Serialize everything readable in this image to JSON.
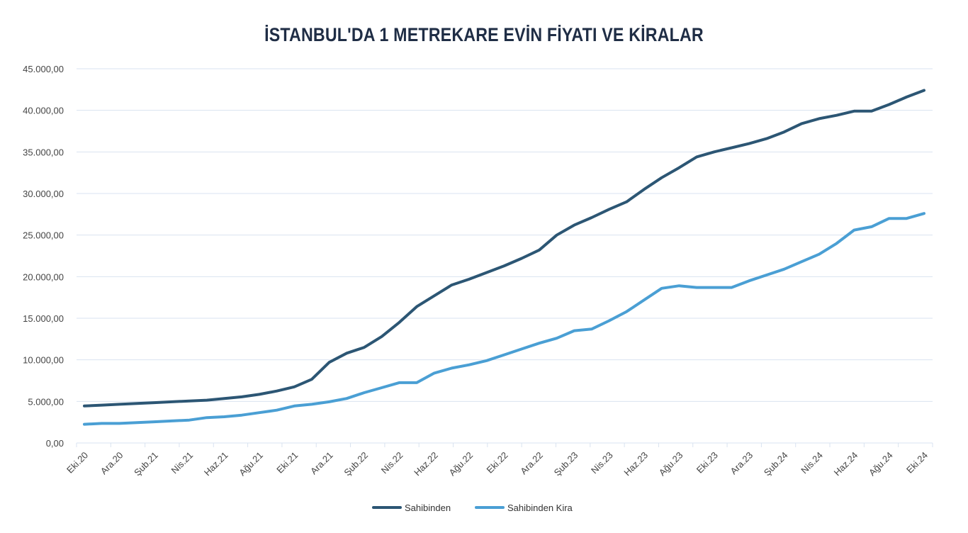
{
  "chart_data": {
    "type": "line",
    "title": "İSTANBUL'DA 1 METREKARE EVİN FİYATI VE KİRALAR",
    "xlabel": "",
    "ylabel": "",
    "ylim": [
      0,
      45000
    ],
    "y_ticks": [
      "0,00",
      "5.000,00",
      "10.000,00",
      "15.000,00",
      "20.000,00",
      "25.000,00",
      "30.000,00",
      "35.000,00",
      "40.000,00",
      "45.000,00"
    ],
    "x_tick_labels": [
      "Eki.20",
      "Ara.20",
      "Şub.21",
      "Nis.21",
      "Haz.21",
      "Ağu.21",
      "Eki.21",
      "Ara.21",
      "Şub.22",
      "Nis.22",
      "Haz.22",
      "Ağu.22",
      "Eki.22",
      "Ara.22",
      "Şub.23",
      "Nis.23",
      "Haz.23",
      "Ağu.23",
      "Eki.23",
      "Ara.23",
      "Şub.24",
      "Nis.24",
      "Haz.24",
      "Ağu.24",
      "Eki.24"
    ],
    "x_frequency": "monthly, Eki.20 to Eki.24",
    "grid": true,
    "legend_position": "bottom",
    "series": [
      {
        "name": "Sahibinden",
        "color": "#2c5674",
        "values": [
          4450,
          4550,
          4650,
          4750,
          4850,
          4950,
          5050,
          5150,
          5350,
          5550,
          5850,
          6250,
          6750,
          7650,
          9700,
          10800,
          11500,
          12800,
          14500,
          16400,
          17700,
          19000,
          19700,
          20500,
          21300,
          22200,
          23200,
          25000,
          26200,
          27100,
          28100,
          29000,
          30500,
          31900,
          33100,
          34400,
          35000,
          35500,
          36000,
          36600,
          37400,
          38400,
          39000,
          39400,
          39900,
          39900,
          40700,
          41600,
          42400
        ]
      },
      {
        "name": "Sahibinden Kira",
        "color": "#4a9fd4",
        "values": [
          2250,
          2350,
          2350,
          2450,
          2550,
          2650,
          2750,
          3050,
          3150,
          3350,
          3650,
          3950,
          4450,
          4650,
          4950,
          5350,
          6050,
          6650,
          7250,
          7250,
          8400,
          9000,
          9400,
          9900,
          10600,
          11300,
          12000,
          12600,
          13500,
          13700,
          14700,
          15800,
          17200,
          18600,
          18900,
          18700,
          18700,
          18700,
          19500,
          20200,
          20900,
          21800,
          22700,
          24000,
          25600,
          26000,
          27000,
          27000,
          27600
        ]
      }
    ]
  }
}
